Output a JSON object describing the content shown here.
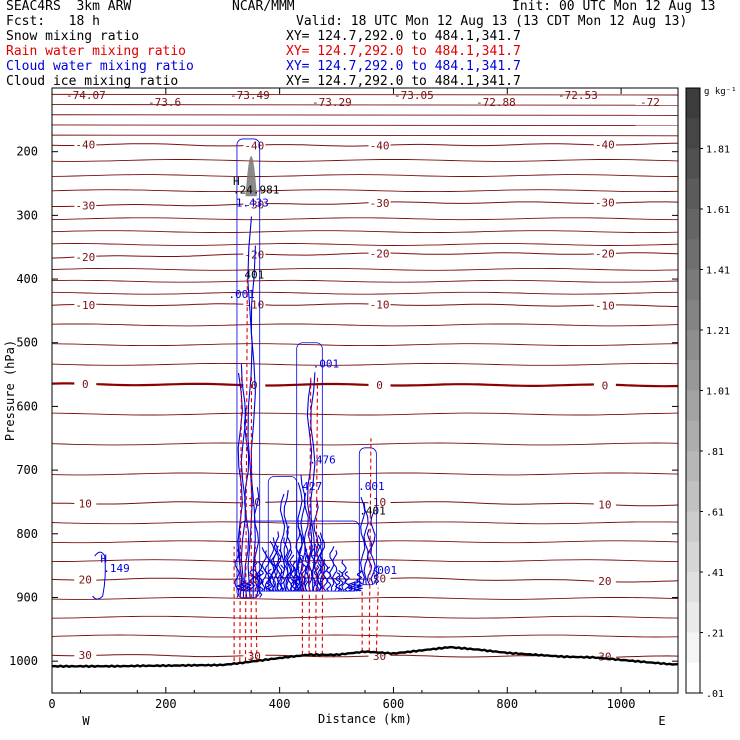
{
  "header": {
    "model": "SEAC4RS  3km ARW",
    "center": "NCAR/MMM",
    "init": "Init: 00 UTC Mon 12 Aug 13",
    "fcst": "Fcst:   18 h",
    "valid": "Valid: 18 UTC Mon 12 Aug 13 (13 CDT Mon 12 Aug 13)",
    "fields": [
      {
        "name": "Snow mixing ratio",
        "xy": "XY= 124.7,292.0 to 484.1,341.7",
        "color": "#000000"
      },
      {
        "name": "Rain water mixing ratio",
        "xy": "XY= 124.7,292.0 to 484.1,341.7",
        "color": "#e00000"
      },
      {
        "name": "Cloud water mixing ratio",
        "xy": "XY= 124.7,292.0 to 484.1,341.7",
        "color": "#0000dd"
      },
      {
        "name": "Cloud ice mixing ratio",
        "xy": "XY= 124.7,292.0 to 484.1,341.7",
        "color": "#000000"
      }
    ]
  },
  "chart_data": {
    "type": "contour",
    "xlabel": "Distance (km)",
    "ylabel": "Pressure (hPa)",
    "xlim": [
      0,
      1100
    ],
    "ylim": [
      1050,
      100
    ],
    "xticks": [
      0,
      200,
      400,
      600,
      800,
      1000
    ],
    "yticks": [
      200,
      300,
      400,
      500,
      600,
      700,
      800,
      900,
      1000
    ],
    "x_end_labels": {
      "left": "W",
      "right": "E"
    },
    "temperature_contours": {
      "color": "#7a1010",
      "zero_color": "#8b0000",
      "levels": [
        {
          "label": "-40",
          "x_km": [
            0,
            100,
            320,
            600,
            1050
          ],
          "p": [
            190,
            188,
            190,
            190,
            188
          ]
        },
        {
          "label": "-30",
          "x_km": [
            0,
            350,
            600,
            1050
          ],
          "p": [
            285,
            283,
            280,
            280
          ]
        },
        {
          "label": "-20",
          "x_km": [
            0,
            330,
            600,
            1050
          ],
          "p": [
            366,
            362,
            360,
            360
          ]
        },
        {
          "label": "-10",
          "x_km": [
            0,
            330,
            600,
            1050
          ],
          "p": [
            441,
            440,
            440,
            442
          ]
        },
        {
          "label": "0",
          "x_km": [
            0,
            330,
            600,
            1050
          ],
          "p": [
            565,
            566,
            566,
            567
          ]
        },
        {
          "label": "10",
          "x_km": [
            0,
            330,
            600,
            1050
          ],
          "p": [
            753,
            750,
            750,
            755
          ]
        },
        {
          "label": "20",
          "x_km": [
            0,
            330,
            600,
            1050
          ],
          "p": [
            872,
            870,
            870,
            875
          ]
        },
        {
          "label": "30",
          "x_km": [
            0,
            330,
            600,
            1050
          ],
          "p": [
            990,
            992,
            992,
            993
          ]
        }
      ],
      "top_labels": [
        "-74.07",
        "-73.6",
        "-73.49",
        "-73.29",
        "-73.05",
        "-72.88",
        "-72.53",
        "-72"
      ]
    },
    "cloud_water_regions": [
      {
        "x_km": [
          325,
          365
        ],
        "p_top": 180,
        "p_bottom": 900
      },
      {
        "x_km": [
          430,
          475
        ],
        "p_top": 500,
        "p_bottom": 890
      },
      {
        "x_km": [
          540,
          570
        ],
        "p_top": 665,
        "p_bottom": 880
      },
      {
        "x_km": [
          380,
          430
        ],
        "p_top": 710,
        "p_bottom": 890
      },
      {
        "x_km": [
          330,
          540
        ],
        "p_top": 780,
        "p_bottom": 890
      }
    ],
    "rain_regions": [
      {
        "x_km": [
          320,
          360
        ],
        "p_top": 400,
        "p_bottom": 1000
      },
      {
        "x_km": [
          440,
          475
        ],
        "p_top": 500,
        "p_bottom": 990
      },
      {
        "x_km": [
          545,
          570
        ],
        "p_top": 650,
        "p_bottom": 985
      }
    ],
    "ice_region": {
      "x_km": [
        340,
        360
      ],
      "p_top": 175,
      "p_bottom": 270
    },
    "ground": {
      "x_km": [
        0,
        100,
        200,
        300,
        330,
        400,
        450,
        500,
        550,
        600,
        650,
        700,
        750,
        800,
        850,
        900,
        950,
        1000,
        1050,
        1090
      ],
      "p": [
        1008,
        1008,
        1007,
        1006,
        1003,
        995,
        990,
        990,
        985,
        988,
        983,
        978,
        982,
        987,
        990,
        993,
        994,
        998,
        1002,
        1005
      ]
    },
    "annotations": [
      {
        "text": ".149",
        "x_km": 90,
        "p": 860,
        "color": "#0000dd"
      },
      {
        "text": "H",
        "x_km": 85,
        "p": 845,
        "color": "#0000dd"
      },
      {
        "text": "H",
        "x_km": 318,
        "p": 252,
        "color": "#000000"
      },
      {
        "text": ".24.981",
        "x_km": 318,
        "p": 266,
        "color": "#000000"
      },
      {
        "text": "1.433",
        "x_km": 323,
        "p": 286,
        "color": "#0000dd"
      },
      {
        "text": "401",
        "x_km": 338,
        "p": 399,
        "color": "#000000"
      },
      {
        "text": ".001",
        "x_km": 310,
        "p": 430,
        "color": "#0000dd"
      },
      {
        "text": ".001",
        "x_km": 458,
        "p": 539,
        "color": "#0000dd"
      },
      {
        "text": ".476",
        "x_km": 452,
        "p": 690,
        "color": "#0000dd"
      },
      {
        "text": "427",
        "x_km": 440,
        "p": 731,
        "color": "#0000dd"
      },
      {
        "text": ".001",
        "x_km": 538,
        "p": 731,
        "color": "#0000dd"
      },
      {
        "text": ".401",
        "x_km": 540,
        "p": 770,
        "color": "#000000"
      },
      {
        "text": ".001",
        "x_km": 420,
        "p": 846,
        "color": "#0000dd"
      },
      {
        "text": ".001",
        "x_km": 560,
        "p": 863,
        "color": "#0000dd"
      }
    ],
    "colorbar": {
      "unit": "g kg⁻¹",
      "labels": [
        "1.81",
        "1.61",
        "1.41",
        "1.21",
        "1.01",
        ".81",
        ".61",
        ".41",
        ".21",
        ".01"
      ],
      "min": 0.01,
      "max": 2.01
    }
  }
}
